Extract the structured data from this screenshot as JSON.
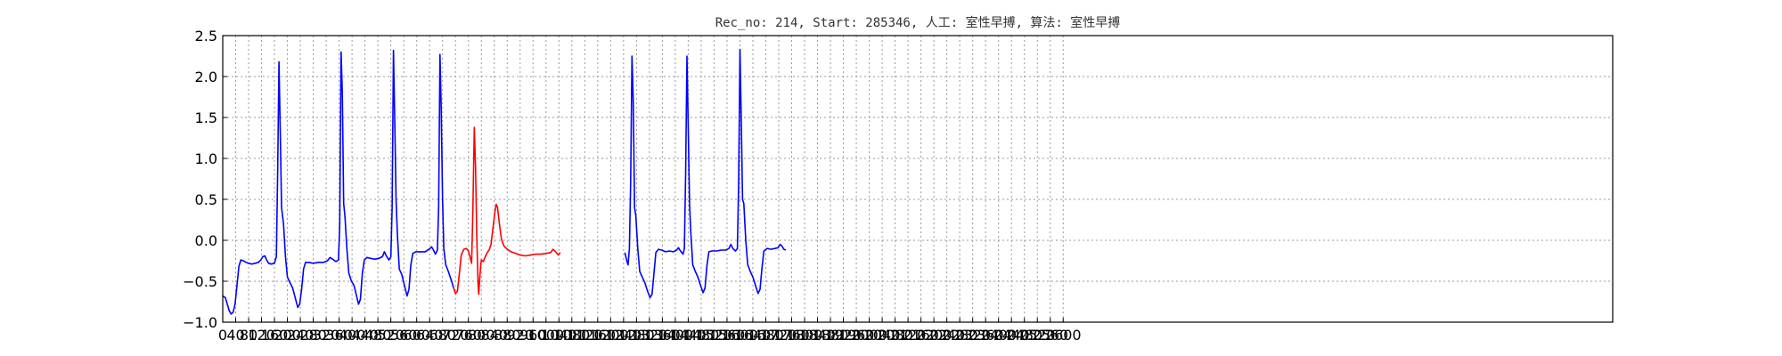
{
  "chart_data": {
    "type": "line",
    "title": "Rec_no: 214, Start: 285346, 人工: 室性早搏, 算法: 室性早搏",
    "xlabel": "",
    "ylabel": "",
    "xlim": [
      0,
      4300
    ],
    "ylim": [
      -1.0,
      2.5
    ],
    "grid": true,
    "xticks": [
      "0",
      "40",
      "80",
      "120",
      "160",
      "200",
      "240",
      "280",
      "320",
      "360",
      "400",
      "440",
      "480",
      "520",
      "560",
      "600",
      "640",
      "680",
      "720",
      "760",
      "800",
      "840",
      "880",
      "920",
      "960",
      "1000",
      "1040",
      "1080",
      "1120",
      "1160",
      "1200",
      "1240",
      "1280",
      "1320",
      "1360",
      "1400",
      "1440",
      "1480",
      "1520",
      "1560",
      "1600",
      "1640",
      "1680",
      "1720",
      "1760",
      "1800",
      "1840",
      "1880",
      "1920",
      "1960",
      "2000",
      "2040",
      "2080",
      "2120",
      "2160",
      "2200",
      "2240",
      "2280",
      "2320",
      "2360",
      "2400",
      "2440",
      "2480",
      "2520",
      "2560",
      "2600"
    ],
    "yticks": [
      "−1.0",
      "−0.5",
      "0.0",
      "0.5",
      "1.0",
      "1.5",
      "2.0",
      "2.5"
    ],
    "series": [
      {
        "color": "#0000ff",
        "segments": [
          [
            [
              0,
              -0.68
            ],
            [
              8,
              -0.7
            ],
            [
              14,
              -0.78
            ],
            [
              20,
              -0.86
            ],
            [
              26,
              -0.9
            ],
            [
              32,
              -0.88
            ],
            [
              38,
              -0.78
            ],
            [
              44,
              -0.55
            ],
            [
              50,
              -0.32
            ],
            [
              56,
              -0.24
            ],
            [
              64,
              -0.25
            ],
            [
              72,
              -0.27
            ],
            [
              80,
              -0.28
            ],
            [
              90,
              -0.29
            ],
            [
              100,
              -0.28
            ],
            [
              110,
              -0.27
            ],
            [
              118,
              -0.24
            ],
            [
              124,
              -0.2
            ],
            [
              130,
              -0.19
            ],
            [
              136,
              -0.24
            ],
            [
              142,
              -0.28
            ],
            [
              150,
              -0.29
            ],
            [
              160,
              -0.28
            ],
            [
              166,
              -0.2
            ],
            [
              170,
              0.9
            ],
            [
              174,
              2.18
            ],
            [
              178,
              1.3
            ],
            [
              182,
              0.4
            ],
            [
              188,
              0.2
            ],
            [
              194,
              -0.2
            ],
            [
              200,
              -0.45
            ],
            [
              208,
              -0.52
            ],
            [
              216,
              -0.58
            ],
            [
              224,
              -0.7
            ],
            [
              232,
              -0.82
            ],
            [
              238,
              -0.78
            ],
            [
              244,
              -0.6
            ],
            [
              250,
              -0.35
            ],
            [
              256,
              -0.27
            ],
            [
              266,
              -0.27
            ],
            [
              280,
              -0.28
            ],
            [
              296,
              -0.27
            ],
            [
              312,
              -0.27
            ],
            [
              324,
              -0.25
            ],
            [
              332,
              -0.21
            ],
            [
              340,
              -0.23
            ],
            [
              350,
              -0.26
            ],
            [
              358,
              -0.24
            ],
            [
              362,
              0.2
            ],
            [
              366,
              2.3
            ],
            [
              370,
              1.8
            ],
            [
              374,
              0.45
            ],
            [
              378,
              0.3
            ],
            [
              384,
              -0.1
            ],
            [
              390,
              -0.4
            ],
            [
              398,
              -0.5
            ],
            [
              406,
              -0.55
            ],
            [
              414,
              -0.68
            ],
            [
              420,
              -0.78
            ],
            [
              426,
              -0.72
            ],
            [
              432,
              -0.4
            ],
            [
              438,
              -0.24
            ],
            [
              446,
              -0.21
            ],
            [
              456,
              -0.22
            ],
            [
              470,
              -0.23
            ],
            [
              484,
              -0.22
            ],
            [
              494,
              -0.2
            ],
            [
              500,
              -0.14
            ],
            [
              506,
              -0.19
            ],
            [
              514,
              -0.24
            ],
            [
              520,
              -0.2
            ],
            [
              524,
              0.4
            ],
            [
              528,
              2.32
            ],
            [
              532,
              1.5
            ],
            [
              536,
              0.5
            ],
            [
              540,
              0.1
            ],
            [
              546,
              -0.35
            ],
            [
              554,
              -0.42
            ],
            [
              562,
              -0.55
            ],
            [
              570,
              -0.68
            ],
            [
              576,
              -0.6
            ],
            [
              582,
              -0.3
            ],
            [
              588,
              -0.16
            ],
            [
              598,
              -0.14
            ],
            [
              612,
              -0.14
            ],
            [
              626,
              -0.14
            ],
            [
              638,
              -0.11
            ],
            [
              646,
              -0.08
            ],
            [
              652,
              -0.12
            ],
            [
              658,
              -0.17
            ],
            [
              664,
              -0.12
            ],
            [
              668,
              0.4
            ],
            [
              672,
              2.27
            ],
            [
              676,
              1.6
            ],
            [
              680,
              0.5
            ],
            [
              684,
              -0.1
            ],
            [
              690,
              -0.3
            ],
            [
              698,
              -0.38
            ],
            [
              708,
              -0.5
            ],
            [
              714,
              -0.58
            ]
          ],
          [
            [
              1244,
              -0.15
            ],
            [
              1250,
              -0.25
            ],
            [
              1254,
              -0.3
            ],
            [
              1258,
              -0.1
            ],
            [
              1262,
              0.7
            ],
            [
              1266,
              2.25
            ],
            [
              1270,
              1.7
            ],
            [
              1274,
              0.4
            ],
            [
              1278,
              0.3
            ],
            [
              1284,
              -0.1
            ],
            [
              1290,
              -0.38
            ],
            [
              1298,
              -0.45
            ],
            [
              1306,
              -0.52
            ],
            [
              1314,
              -0.62
            ],
            [
              1322,
              -0.7
            ],
            [
              1328,
              -0.66
            ],
            [
              1334,
              -0.4
            ],
            [
              1340,
              -0.15
            ],
            [
              1348,
              -0.11
            ],
            [
              1358,
              -0.12
            ],
            [
              1370,
              -0.14
            ],
            [
              1382,
              -0.13
            ],
            [
              1394,
              -0.14
            ],
            [
              1404,
              -0.12
            ],
            [
              1410,
              -0.09
            ],
            [
              1416,
              -0.13
            ],
            [
              1424,
              -0.17
            ],
            [
              1428,
              -0.1
            ],
            [
              1432,
              0.8
            ],
            [
              1436,
              2.25
            ],
            [
              1440,
              1.4
            ],
            [
              1444,
              0.45
            ],
            [
              1448,
              0.1
            ],
            [
              1454,
              -0.3
            ],
            [
              1462,
              -0.38
            ],
            [
              1470,
              -0.45
            ],
            [
              1478,
              -0.55
            ],
            [
              1486,
              -0.64
            ],
            [
              1492,
              -0.58
            ],
            [
              1498,
              -0.3
            ],
            [
              1504,
              -0.14
            ],
            [
              1514,
              -0.13
            ],
            [
              1528,
              -0.13
            ],
            [
              1542,
              -0.12
            ],
            [
              1556,
              -0.12
            ],
            [
              1566,
              -0.1
            ],
            [
              1572,
              -0.05
            ],
            [
              1578,
              -0.1
            ],
            [
              1586,
              -0.13
            ],
            [
              1592,
              -0.1
            ],
            [
              1596,
              0.7
            ],
            [
              1600,
              2.33
            ],
            [
              1604,
              1.5
            ],
            [
              1608,
              0.5
            ],
            [
              1612,
              0.45
            ],
            [
              1618,
              0.0
            ],
            [
              1624,
              -0.3
            ],
            [
              1632,
              -0.38
            ],
            [
              1640,
              -0.45
            ],
            [
              1648,
              -0.55
            ],
            [
              1656,
              -0.65
            ],
            [
              1662,
              -0.6
            ],
            [
              1668,
              -0.35
            ],
            [
              1674,
              -0.13
            ],
            [
              1684,
              -0.1
            ],
            [
              1696,
              -0.11
            ],
            [
              1708,
              -0.1
            ],
            [
              1718,
              -0.09
            ],
            [
              1724,
              -0.05
            ],
            [
              1730,
              -0.07
            ],
            [
              1736,
              -0.11
            ],
            [
              1742,
              -0.12
            ]
          ]
        ]
      },
      {
        "color": "#ff0000",
        "segments": [
          [
            [
              714,
              -0.58
            ],
            [
              720,
              -0.65
            ],
            [
              726,
              -0.62
            ],
            [
              732,
              -0.4
            ],
            [
              738,
              -0.18
            ],
            [
              746,
              -0.11
            ],
            [
              754,
              -0.1
            ],
            [
              760,
              -0.13
            ],
            [
              766,
              -0.22
            ],
            [
              770,
              -0.28
            ],
            [
              774,
              0.4
            ],
            [
              778,
              1.38
            ],
            [
              782,
              0.9
            ],
            [
              786,
              0.0
            ],
            [
              790,
              -0.55
            ],
            [
              792,
              -0.66
            ],
            [
              796,
              -0.4
            ],
            [
              800,
              -0.24
            ],
            [
              806,
              -0.26
            ],
            [
              812,
              -0.2
            ],
            [
              818,
              -0.15
            ],
            [
              824,
              -0.12
            ],
            [
              830,
              -0.05
            ],
            [
              836,
              0.15
            ],
            [
              842,
              0.35
            ],
            [
              846,
              0.44
            ],
            [
              850,
              0.4
            ],
            [
              856,
              0.2
            ],
            [
              862,
              0.02
            ]
          ],
          [
            [
              862,
              0.02
            ],
            [
              870,
              -0.07
            ],
            [
              880,
              -0.11
            ],
            [
              892,
              -0.14
            ],
            [
              906,
              -0.16
            ],
            [
              920,
              -0.18
            ],
            [
              936,
              -0.19
            ],
            [
              952,
              -0.18
            ],
            [
              968,
              -0.17
            ],
            [
              984,
              -0.17
            ],
            [
              1000,
              -0.16
            ],
            [
              1014,
              -0.15
            ],
            [
              1022,
              -0.11
            ],
            [
              1030,
              -0.14
            ],
            [
              1038,
              -0.18
            ],
            [
              1044,
              -0.15
            ]
          ]
        ]
      }
    ]
  }
}
